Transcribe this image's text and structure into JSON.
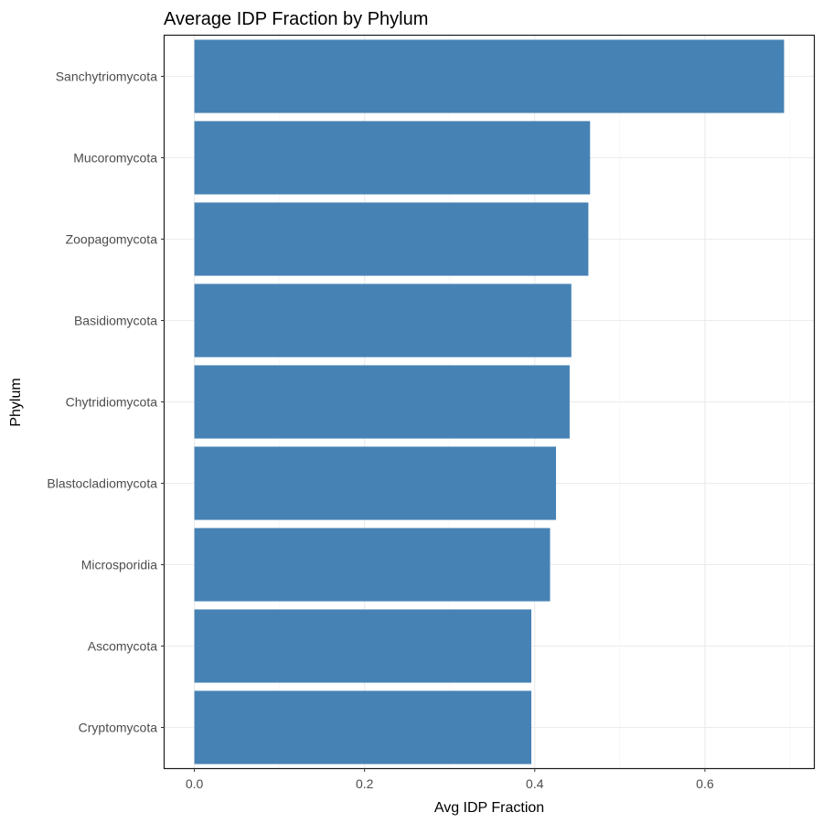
{
  "chart_data": {
    "type": "bar",
    "orientation": "horizontal",
    "title": "Average IDP Fraction by Phylum",
    "xlabel": "Avg IDP Fraction",
    "ylabel": "Phylum",
    "categories": [
      "Sanchytriomycota",
      "Mucoromycota",
      "Zoopagomycota",
      "Basidiomycota",
      "Chytridiomycota",
      "Blastocladiomycota",
      "Microsporidia",
      "Ascomycota",
      "Cryptomycota"
    ],
    "values": [
      0.693,
      0.465,
      0.463,
      0.443,
      0.441,
      0.425,
      0.418,
      0.396,
      0.396
    ],
    "xlim": [
      -0.035,
      0.728
    ],
    "xticks": [
      0.0,
      0.2,
      0.4,
      0.6
    ],
    "xtick_labels": [
      "0.0",
      "0.2",
      "0.4",
      "0.6"
    ],
    "grid": true,
    "bar_color": "#4682b4"
  }
}
